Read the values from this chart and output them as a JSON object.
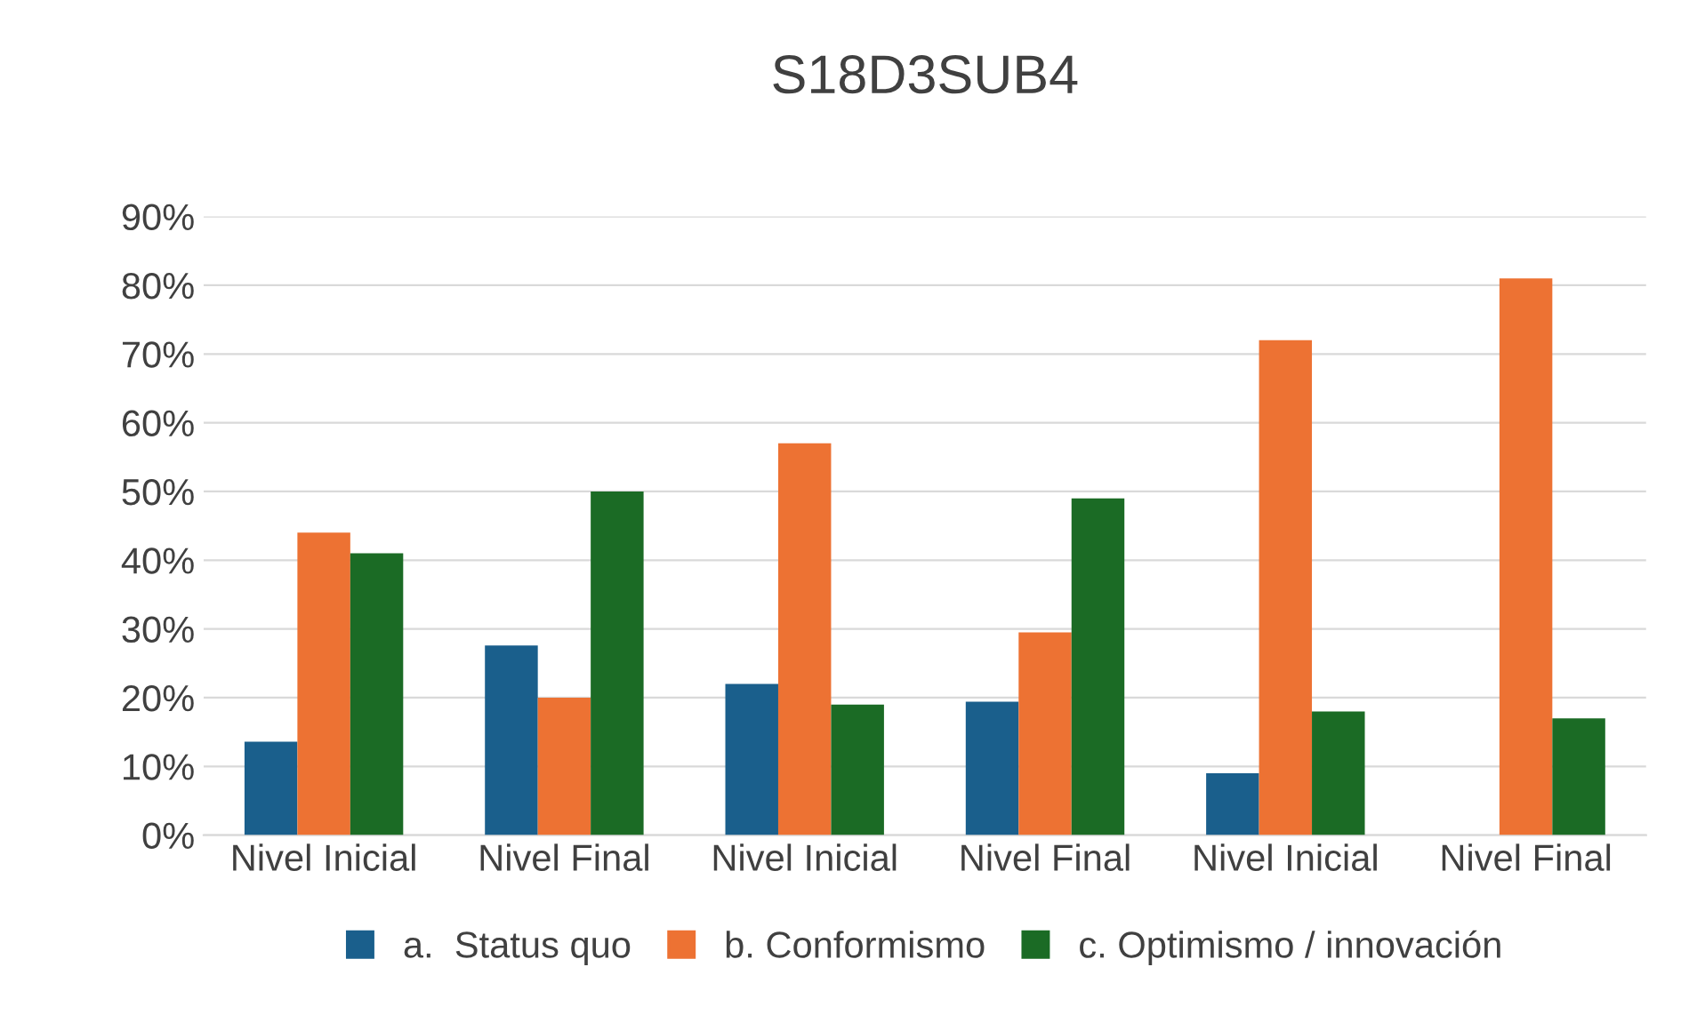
{
  "chart_data": {
    "type": "bar",
    "title": "S18D3SUB4",
    "categories": [
      "Nivel Inicial",
      "Nivel Final",
      "Nivel Inicial",
      "Nivel Final",
      "Nivel Inicial",
      "Nivel Final"
    ],
    "series": [
      {
        "name": "a.  Status quo",
        "color": "#1a5f8c",
        "values": [
          0.136,
          0.276,
          0.22,
          0.194,
          0.09,
          0
        ]
      },
      {
        "name": "b. Conformismo",
        "color": "#ed7233",
        "values": [
          0.44,
          0.2,
          0.57,
          0.295,
          0.72,
          0.81
        ]
      },
      {
        "name": "c. Optimismo / innovación",
        "color": "#1b6b25",
        "values": [
          0.41,
          0.5,
          0.19,
          0.49,
          0.18,
          0.17
        ]
      }
    ],
    "ylim": [
      0,
      0.9
    ],
    "yticks": [
      {
        "value": 0,
        "label": "0%"
      },
      {
        "value": 0.1,
        "label": "10%"
      },
      {
        "value": 0.2,
        "label": "20%"
      },
      {
        "value": 0.3,
        "label": "30%"
      },
      {
        "value": 0.4,
        "label": "40%"
      },
      {
        "value": 0.5,
        "label": "50%"
      },
      {
        "value": 0.6,
        "label": "60%"
      },
      {
        "value": 0.7,
        "label": "70%"
      },
      {
        "value": 0.8,
        "label": "80%"
      },
      {
        "value": 0.9,
        "label": "90%"
      }
    ],
    "grid": "y",
    "legend": "bottom"
  }
}
